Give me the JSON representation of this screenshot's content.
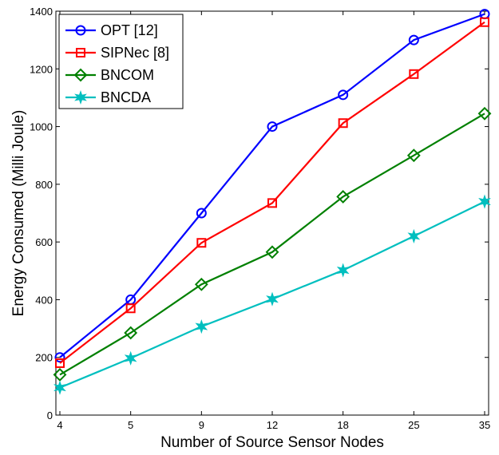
{
  "chart_data": {
    "type": "line",
    "title": "",
    "xlabel": "Number of Source Sensor Nodes",
    "ylabel": "Energy Consumed (Milli Joule)",
    "categories": [
      "4",
      "5",
      "9",
      "12",
      "18",
      "25",
      "35"
    ],
    "ylim": [
      0,
      1400
    ],
    "yticks": [
      "0",
      "200",
      "400",
      "600",
      "800",
      "1000",
      "1200",
      "1400"
    ],
    "grid": false,
    "legend_position": "top-left",
    "series": [
      {
        "name": "OPT [12]",
        "color": "#0000ff",
        "marker": "circle",
        "values": [
          200,
          400,
          700,
          1000,
          1110,
          1300,
          1390
        ]
      },
      {
        "name": "SIPNec [8]",
        "color": "#ff0000",
        "marker": "square",
        "values": [
          180,
          370,
          597,
          735,
          1012,
          1182,
          1362
        ]
      },
      {
        "name": "BNCOM",
        "color": "#008000",
        "marker": "diamond",
        "values": [
          140,
          285,
          453,
          565,
          757,
          900,
          1045
        ]
      },
      {
        "name": "BNCDA",
        "color": "#00bfbf",
        "marker": "star",
        "values": [
          95,
          197,
          307,
          402,
          502,
          620,
          740
        ]
      }
    ]
  }
}
